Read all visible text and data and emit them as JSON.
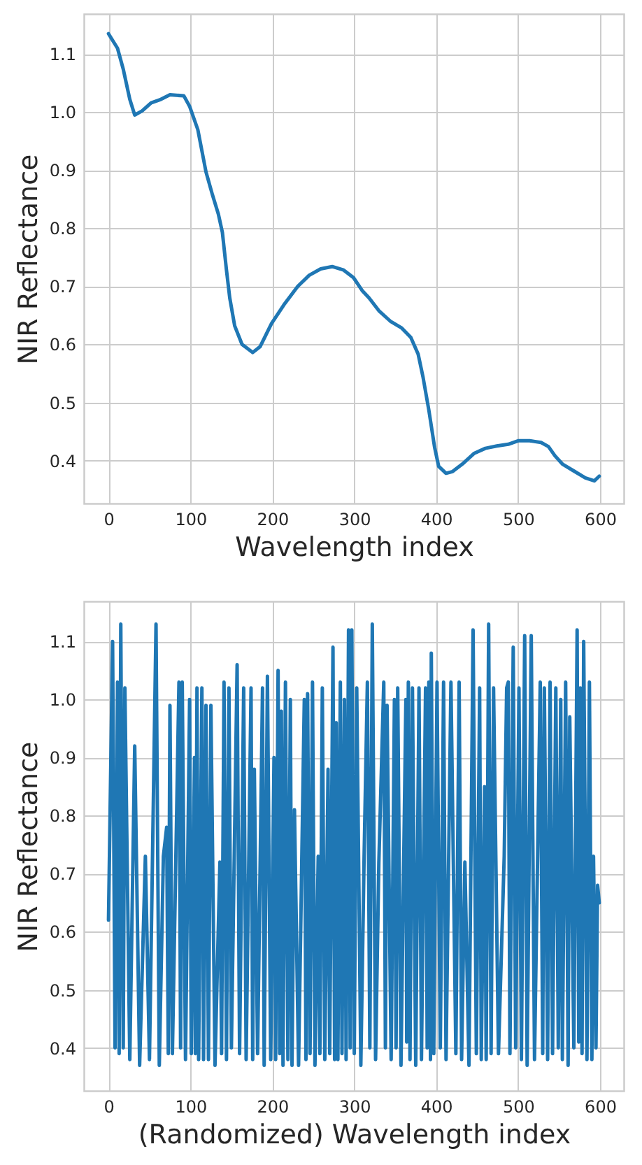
{
  "chart_data": [
    {
      "type": "line",
      "xlabel": "Wavelength index",
      "ylabel": "NIR Reflectance",
      "x": [
        0,
        11,
        18,
        26,
        32,
        41,
        52,
        64,
        75,
        83,
        92,
        99,
        109,
        119,
        127,
        134,
        139,
        144,
        148,
        154,
        163,
        176,
        185,
        199,
        214,
        231,
        245,
        259,
        273,
        287,
        299,
        310,
        318,
        330,
        344,
        358,
        369,
        378,
        384,
        391,
        398,
        403,
        412,
        420,
        432,
        446,
        460,
        474,
        488,
        500,
        514,
        528,
        537,
        545,
        554,
        568,
        582,
        593,
        599
      ],
      "series": [
        {
          "color": "#1f77b4",
          "values": [
            1.135,
            1.11,
            1.074,
            1.022,
            0.995,
            1.002,
            1.016,
            1.022,
            1.03,
            1.029,
            1.028,
            1.01,
            0.97,
            0.897,
            0.857,
            0.825,
            0.793,
            0.728,
            0.68,
            0.632,
            0.6,
            0.586,
            0.596,
            0.636,
            0.668,
            0.7,
            0.719,
            0.73,
            0.734,
            0.728,
            0.715,
            0.692,
            0.68,
            0.658,
            0.64,
            0.628,
            0.612,
            0.583,
            0.543,
            0.487,
            0.423,
            0.39,
            0.378,
            0.381,
            0.394,
            0.412,
            0.421,
            0.425,
            0.428,
            0.434,
            0.434,
            0.431,
            0.424,
            0.408,
            0.394,
            0.382,
            0.37,
            0.365,
            0.373
          ]
        }
      ],
      "xlim": [
        -30,
        629
      ],
      "ylim": [
        0.326,
        1.169
      ],
      "xticks": [
        0,
        100,
        200,
        300,
        400,
        500,
        600
      ],
      "yticks": [
        0.4,
        0.5,
        0.6,
        0.7,
        0.8,
        0.9,
        {
          "value": 1.0,
          "label": "1.0"
        },
        1.1
      ],
      "grid": true
    },
    {
      "type": "line",
      "xlabel": "(Randomized) Wavelength index",
      "ylabel": "NIR Reflectance",
      "x": [
        0,
        5,
        8,
        11,
        13,
        15,
        18,
        20,
        26,
        32,
        38,
        45,
        50,
        58,
        62,
        67,
        71,
        73,
        75,
        78,
        86,
        88,
        90,
        94,
        99,
        101,
        105,
        106,
        108,
        110,
        114,
        116,
        119,
        122,
        125,
        130,
        136,
        138,
        141,
        144,
        147,
        150,
        157,
        160,
        165,
        168,
        174,
        176,
        178,
        182,
        188,
        190,
        194,
        198,
        202,
        204,
        207,
        209,
        211,
        213,
        216,
        219,
        222,
        224,
        227,
        232,
        239,
        241,
        243,
        246,
        249,
        252,
        256,
        258,
        261,
        264,
        268,
        270,
        274,
        276,
        278,
        280,
        283,
        285,
        288,
        290,
        293,
        295,
        297,
        300,
        303,
        308,
        312,
        316,
        319,
        322,
        326,
        330,
        336,
        338,
        340,
        345,
        349,
        351,
        353,
        357,
        363,
        364,
        366,
        368,
        371,
        375,
        379,
        382,
        387,
        389,
        391,
        393,
        394,
        397,
        401,
        405,
        409,
        412,
        418,
        424,
        428,
        431,
        435,
        440,
        445,
        449,
        453,
        455,
        459,
        461,
        464,
        467,
        470,
        476,
        483,
        486,
        488,
        490,
        494,
        497,
        501,
        504,
        508,
        511,
        516,
        520,
        527,
        530,
        532,
        536,
        539,
        542,
        546,
        549,
        552,
        554,
        558,
        561,
        563,
        568,
        572,
        574,
        576,
        578,
        580,
        584,
        587,
        590,
        592,
        595,
        597,
        599
      ],
      "series": [
        {
          "color": "#1f77b4",
          "values": [
            0.62,
            1.1,
            0.4,
            1.03,
            0.39,
            1.13,
            0.4,
            1.02,
            0.38,
            0.92,
            0.37,
            0.73,
            0.38,
            1.13,
            0.37,
            0.73,
            0.78,
            0.39,
            0.99,
            0.39,
            1.03,
            0.4,
            1.03,
            0.38,
            1.0,
            0.39,
            0.9,
            0.39,
            1.02,
            0.38,
            1.02,
            0.38,
            0.99,
            0.38,
            0.99,
            0.37,
            0.72,
            0.39,
            1.03,
            0.38,
            1.02,
            0.4,
            1.06,
            0.39,
            1.02,
            0.38,
            1.02,
            0.38,
            0.88,
            0.39,
            1.02,
            0.37,
            1.04,
            0.38,
            0.9,
            0.38,
            1.05,
            0.39,
            0.98,
            0.37,
            1.03,
            0.38,
            1.0,
            0.37,
            0.81,
            0.37,
            1.0,
            0.38,
            1.01,
            0.39,
            1.03,
            0.37,
            0.73,
            0.39,
            1.02,
            0.38,
            0.88,
            0.39,
            1.09,
            0.38,
            0.96,
            0.38,
            1.03,
            0.39,
            1.0,
            0.38,
            1.12,
            0.4,
            1.12,
            0.39,
            1.02,
            0.37,
            0.73,
            1.03,
            0.4,
            1.13,
            0.38,
            0.72,
            1.03,
            0.4,
            0.99,
            0.38,
            1.0,
            0.4,
            1.02,
            0.37,
            1.0,
            0.41,
            1.03,
            0.38,
            1.02,
            0.37,
            1.02,
            0.38,
            1.02,
            0.4,
            1.03,
            0.38,
            1.08,
            0.39,
            1.03,
            0.4,
            1.03,
            0.38,
            1.03,
            0.39,
            1.03,
            0.38,
            0.72,
            0.37,
            1.12,
            0.39,
            1.02,
            0.38,
            0.85,
            0.38,
            1.13,
            0.39,
            1.02,
            0.39,
            0.73,
            1.02,
            1.03,
            0.39,
            1.09,
            0.4,
            1.02,
            0.38,
            1.11,
            0.37,
            1.11,
            0.38,
            1.03,
            0.39,
            1.02,
            0.38,
            1.03,
            0.39,
            1.02,
            0.4,
            1.0,
            0.38,
            1.03,
            0.37,
            0.97,
            0.4,
            1.12,
            0.41,
            1.02,
            0.39,
            1.1,
            0.38,
            1.03,
            0.38,
            0.73,
            0.4,
            0.68,
            0.65
          ]
        }
      ],
      "xlim": [
        -30,
        629
      ],
      "ylim": [
        0.326,
        1.169
      ],
      "xticks": [
        0,
        100,
        200,
        300,
        400,
        500,
        600
      ],
      "yticks": [
        0.4,
        0.5,
        0.6,
        0.7,
        0.8,
        0.9,
        {
          "value": 1.0,
          "label": "1.0"
        },
        1.1
      ],
      "grid": true
    }
  ]
}
